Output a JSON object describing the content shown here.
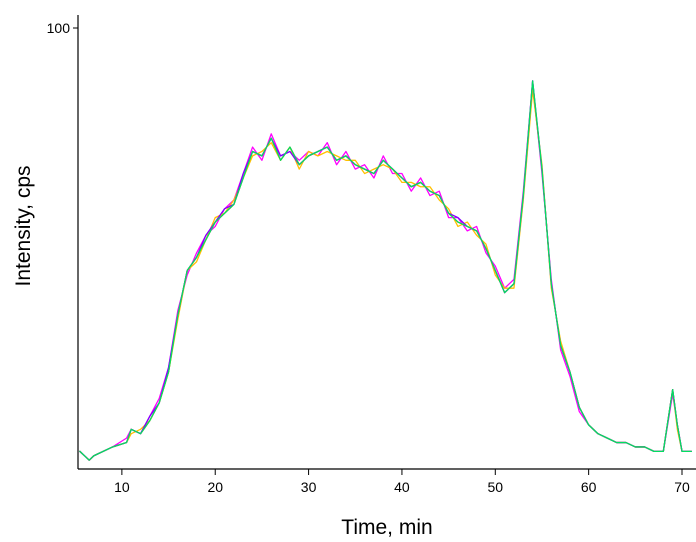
{
  "chart_data": {
    "type": "line",
    "title": "",
    "xlabel": "Time, min",
    "ylabel": "Intensity, cps",
    "xlim": [
      5.3,
      71.5
    ],
    "ylim": [
      0,
      100
    ],
    "x_ticks": [
      10,
      20,
      30,
      40,
      50,
      60,
      70
    ],
    "y_ticks": [
      100
    ],
    "grid": false,
    "legend": "none",
    "series": [
      {
        "color": "#ff0000",
        "x": [
          5.5,
          6.5,
          7,
          9,
          10.5,
          11,
          12,
          13,
          14,
          15,
          16,
          17,
          18,
          19,
          20,
          21,
          22,
          23,
          24,
          25,
          26,
          27,
          28,
          29,
          30,
          31,
          32,
          33,
          34,
          35,
          36,
          37,
          38,
          39,
          40,
          41,
          42,
          43,
          44,
          45,
          46,
          47,
          48,
          49,
          50,
          51,
          52,
          53,
          54,
          55,
          56,
          57,
          58,
          59,
          60,
          61,
          62,
          63,
          64,
          65,
          66,
          67,
          68,
          69,
          69.5,
          70,
          71
        ],
        "y": [
          4,
          2,
          3,
          5,
          6,
          9,
          8,
          11,
          15,
          22,
          35,
          45,
          48,
          52,
          56,
          58,
          60,
          66,
          72,
          71,
          75,
          70,
          73,
          69,
          71,
          72,
          73,
          70,
          71,
          69,
          68,
          67,
          70,
          68,
          66,
          64,
          65,
          63,
          62,
          58,
          56,
          55,
          54,
          50,
          45,
          40,
          42,
          62,
          87,
          68,
          42,
          28,
          22,
          14,
          10,
          8,
          7,
          6,
          6,
          5,
          5,
          4,
          4,
          18,
          10,
          4,
          4
        ]
      },
      {
        "color": "#ff00ff",
        "x": [
          5.5,
          6.5,
          7,
          9,
          10.5,
          11,
          12,
          13,
          14,
          15,
          16,
          17,
          18,
          19,
          20,
          21,
          22,
          23,
          24,
          25,
          26,
          27,
          28,
          29,
          30,
          31,
          32,
          33,
          34,
          35,
          36,
          37,
          38,
          39,
          40,
          41,
          42,
          43,
          44,
          45,
          46,
          47,
          48,
          49,
          50,
          51,
          52,
          53,
          54,
          55,
          56,
          57,
          58,
          59,
          60,
          61,
          62,
          63,
          64,
          65,
          66,
          67,
          68,
          69,
          69.5,
          70,
          71
        ],
        "y": [
          4,
          2,
          3,
          5,
          7,
          9,
          8,
          12,
          16,
          23,
          36,
          44,
          49,
          53,
          55,
          59,
          61,
          67,
          73,
          70,
          76,
          71,
          72,
          70,
          72,
          71,
          74,
          69,
          72,
          68,
          69,
          66,
          71,
          67,
          67,
          63,
          66,
          62,
          63,
          57,
          57,
          54,
          55,
          49,
          46,
          41,
          43,
          63,
          88,
          67,
          43,
          27,
          21,
          13,
          10,
          8,
          7,
          6,
          6,
          5,
          5,
          4,
          4,
          17,
          10,
          4,
          4
        ]
      },
      {
        "color": "#ffc000",
        "x": [
          5.5,
          6.5,
          7,
          9,
          10.5,
          11,
          12,
          13,
          14,
          15,
          16,
          17,
          18,
          19,
          20,
          21,
          22,
          23,
          24,
          25,
          26,
          27,
          28,
          29,
          30,
          31,
          32,
          33,
          34,
          35,
          36,
          37,
          38,
          39,
          40,
          41,
          42,
          43,
          44,
          45,
          46,
          47,
          48,
          49,
          50,
          51,
          52,
          53,
          54,
          55,
          56,
          57,
          58,
          59,
          60,
          61,
          62,
          63,
          64,
          65,
          66,
          67,
          68,
          69,
          69.5,
          70,
          71
        ],
        "y": [
          4,
          2,
          3,
          5,
          6,
          8,
          9,
          11,
          15,
          22,
          34,
          45,
          47,
          52,
          57,
          58,
          61,
          66,
          71,
          72,
          74,
          70,
          73,
          68,
          72,
          71,
          72,
          71,
          70,
          70,
          67,
          68,
          69,
          68,
          65,
          65,
          64,
          64,
          61,
          59,
          55,
          56,
          53,
          51,
          44,
          41,
          41,
          61,
          86,
          69,
          41,
          29,
          22,
          14,
          10,
          8,
          7,
          6,
          6,
          5,
          5,
          4,
          4,
          18,
          9,
          4,
          4
        ]
      },
      {
        "color": "#8000ff",
        "x": [
          5.5,
          6.5,
          7,
          9,
          10.5,
          11,
          12,
          13,
          14,
          15,
          16,
          17,
          18,
          19,
          20,
          21,
          22,
          23,
          24,
          25,
          26,
          27,
          28,
          29,
          30,
          31,
          32,
          33,
          34,
          35,
          36,
          37,
          38,
          39,
          40,
          41,
          42,
          43,
          44,
          45,
          46,
          47,
          48,
          49,
          50,
          51,
          52,
          53,
          54,
          55,
          56,
          57,
          58,
          59,
          60,
          61,
          62,
          63,
          64,
          65,
          66,
          67,
          68,
          69,
          69.5,
          70,
          71
        ],
        "y": [
          4,
          2,
          3,
          5,
          6,
          9,
          8,
          12,
          15,
          23,
          35,
          45,
          48,
          53,
          56,
          59,
          60,
          67,
          72,
          71,
          75,
          71,
          72,
          69,
          71,
          72,
          73,
          70,
          71,
          69,
          68,
          67,
          70,
          68,
          66,
          64,
          65,
          63,
          62,
          58,
          57,
          55,
          54,
          50,
          45,
          40,
          42,
          62,
          88,
          68,
          42,
          28,
          22,
          14,
          10,
          8,
          7,
          6,
          6,
          5,
          5,
          4,
          4,
          18,
          10,
          4,
          4
        ]
      },
      {
        "color": "#00e060",
        "x": [
          5.5,
          6.5,
          7,
          9,
          10.5,
          11,
          12,
          13,
          14,
          15,
          16,
          17,
          18,
          19,
          20,
          21,
          22,
          23,
          24,
          25,
          26,
          27,
          28,
          29,
          30,
          31,
          32,
          33,
          34,
          35,
          36,
          37,
          38,
          39,
          40,
          41,
          42,
          43,
          44,
          45,
          46,
          47,
          48,
          49,
          50,
          51,
          52,
          53,
          54,
          55,
          56,
          57,
          58,
          59,
          60,
          61,
          62,
          63,
          64,
          65,
          66,
          67,
          68,
          69,
          69.5,
          70,
          71
        ],
        "y": [
          4,
          2,
          3,
          5,
          6,
          9,
          8,
          11,
          15,
          22,
          35,
          45,
          48,
          52,
          56,
          58,
          60,
          66,
          72,
          71,
          75,
          70,
          73,
          69,
          71,
          72,
          73,
          70,
          71,
          69,
          68,
          67,
          70,
          68,
          66,
          64,
          65,
          63,
          62,
          58,
          56,
          55,
          54,
          50,
          45,
          40,
          42,
          62,
          88,
          68,
          42,
          28,
          22,
          14,
          10,
          8,
          7,
          6,
          6,
          5,
          5,
          4,
          4,
          18,
          10,
          4,
          4
        ]
      }
    ]
  }
}
